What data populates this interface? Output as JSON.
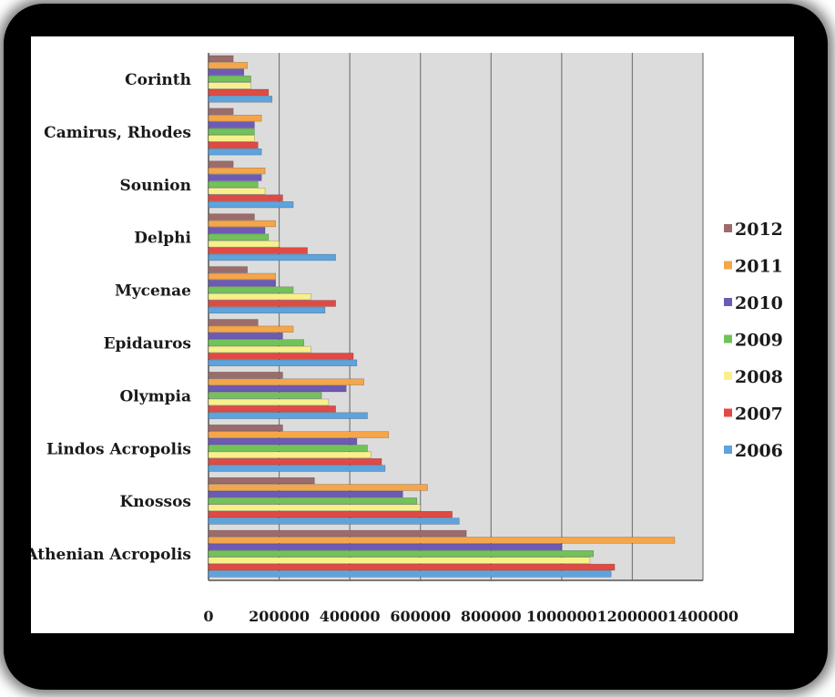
{
  "chart_data": {
    "type": "bar",
    "orientation": "horizontal",
    "title": "",
    "xlabel": "",
    "ylabel": "",
    "xlim": [
      0,
      1400000
    ],
    "xticks": [
      0,
      200000,
      400000,
      600000,
      800000,
      1000000,
      1200000,
      1400000
    ],
    "grid": true,
    "legend_position": "right",
    "categories": [
      "Corinth",
      "Camirus, Rhodes",
      "Sounion",
      "Delphi",
      "Mycenae",
      "Epidauros",
      "Olympia",
      "Lindos Acropolis",
      "Knossos",
      "Athenian Acropolis"
    ],
    "series": [
      {
        "name": "2012",
        "color": "#9c6b6b",
        "values": [
          70000,
          70000,
          70000,
          130000,
          110000,
          140000,
          210000,
          210000,
          300000,
          730000
        ]
      },
      {
        "name": "2011",
        "color": "#f5a54a",
        "values": [
          110000,
          150000,
          160000,
          190000,
          190000,
          240000,
          440000,
          510000,
          620000,
          1320000
        ]
      },
      {
        "name": "2010",
        "color": "#6d5ab5",
        "values": [
          100000,
          130000,
          150000,
          160000,
          190000,
          210000,
          390000,
          420000,
          550000,
          1000000
        ]
      },
      {
        "name": "2009",
        "color": "#72c25a",
        "values": [
          120000,
          130000,
          140000,
          170000,
          240000,
          270000,
          320000,
          450000,
          590000,
          1090000
        ]
      },
      {
        "name": "2008",
        "color": "#f7f08c",
        "values": [
          120000,
          130000,
          160000,
          200000,
          290000,
          290000,
          340000,
          460000,
          600000,
          1080000
        ]
      },
      {
        "name": "2007",
        "color": "#e04a45",
        "values": [
          170000,
          140000,
          210000,
          280000,
          360000,
          410000,
          360000,
          490000,
          690000,
          1150000
        ]
      },
      {
        "name": "2006",
        "color": "#5ea3dc",
        "values": [
          180000,
          150000,
          240000,
          360000,
          330000,
          420000,
          450000,
          500000,
          710000,
          1140000
        ]
      }
    ]
  }
}
